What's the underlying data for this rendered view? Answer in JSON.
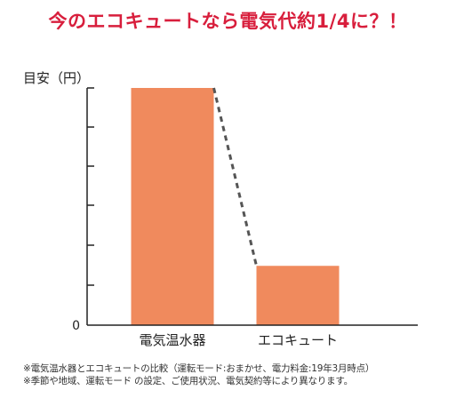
{
  "title": "今のエコキュートなら電気代約1/4に？！",
  "notes": [
    "※電気温水器とエコキュートの比較（運転モード:おまかせ、電力料金:19年3月時点）",
    "※季節や地域、運転モード の設定、ご使用状況、電気契約等により異なります。"
  ],
  "colors": {
    "bar": "#f08a5d",
    "title": "#d81e3c",
    "axis": "#222222",
    "dash": "#555555"
  },
  "chart_data": {
    "type": "bar",
    "ylabel": "目安（円）",
    "categories": [
      "電気温水器",
      "エコキュート"
    ],
    "values": [
      4,
      1
    ],
    "ylim": [
      0,
      4.4
    ],
    "y_tick_labels": [
      {
        "value": 0,
        "label": "0"
      }
    ],
    "connector": "dashed",
    "grid": false
  }
}
